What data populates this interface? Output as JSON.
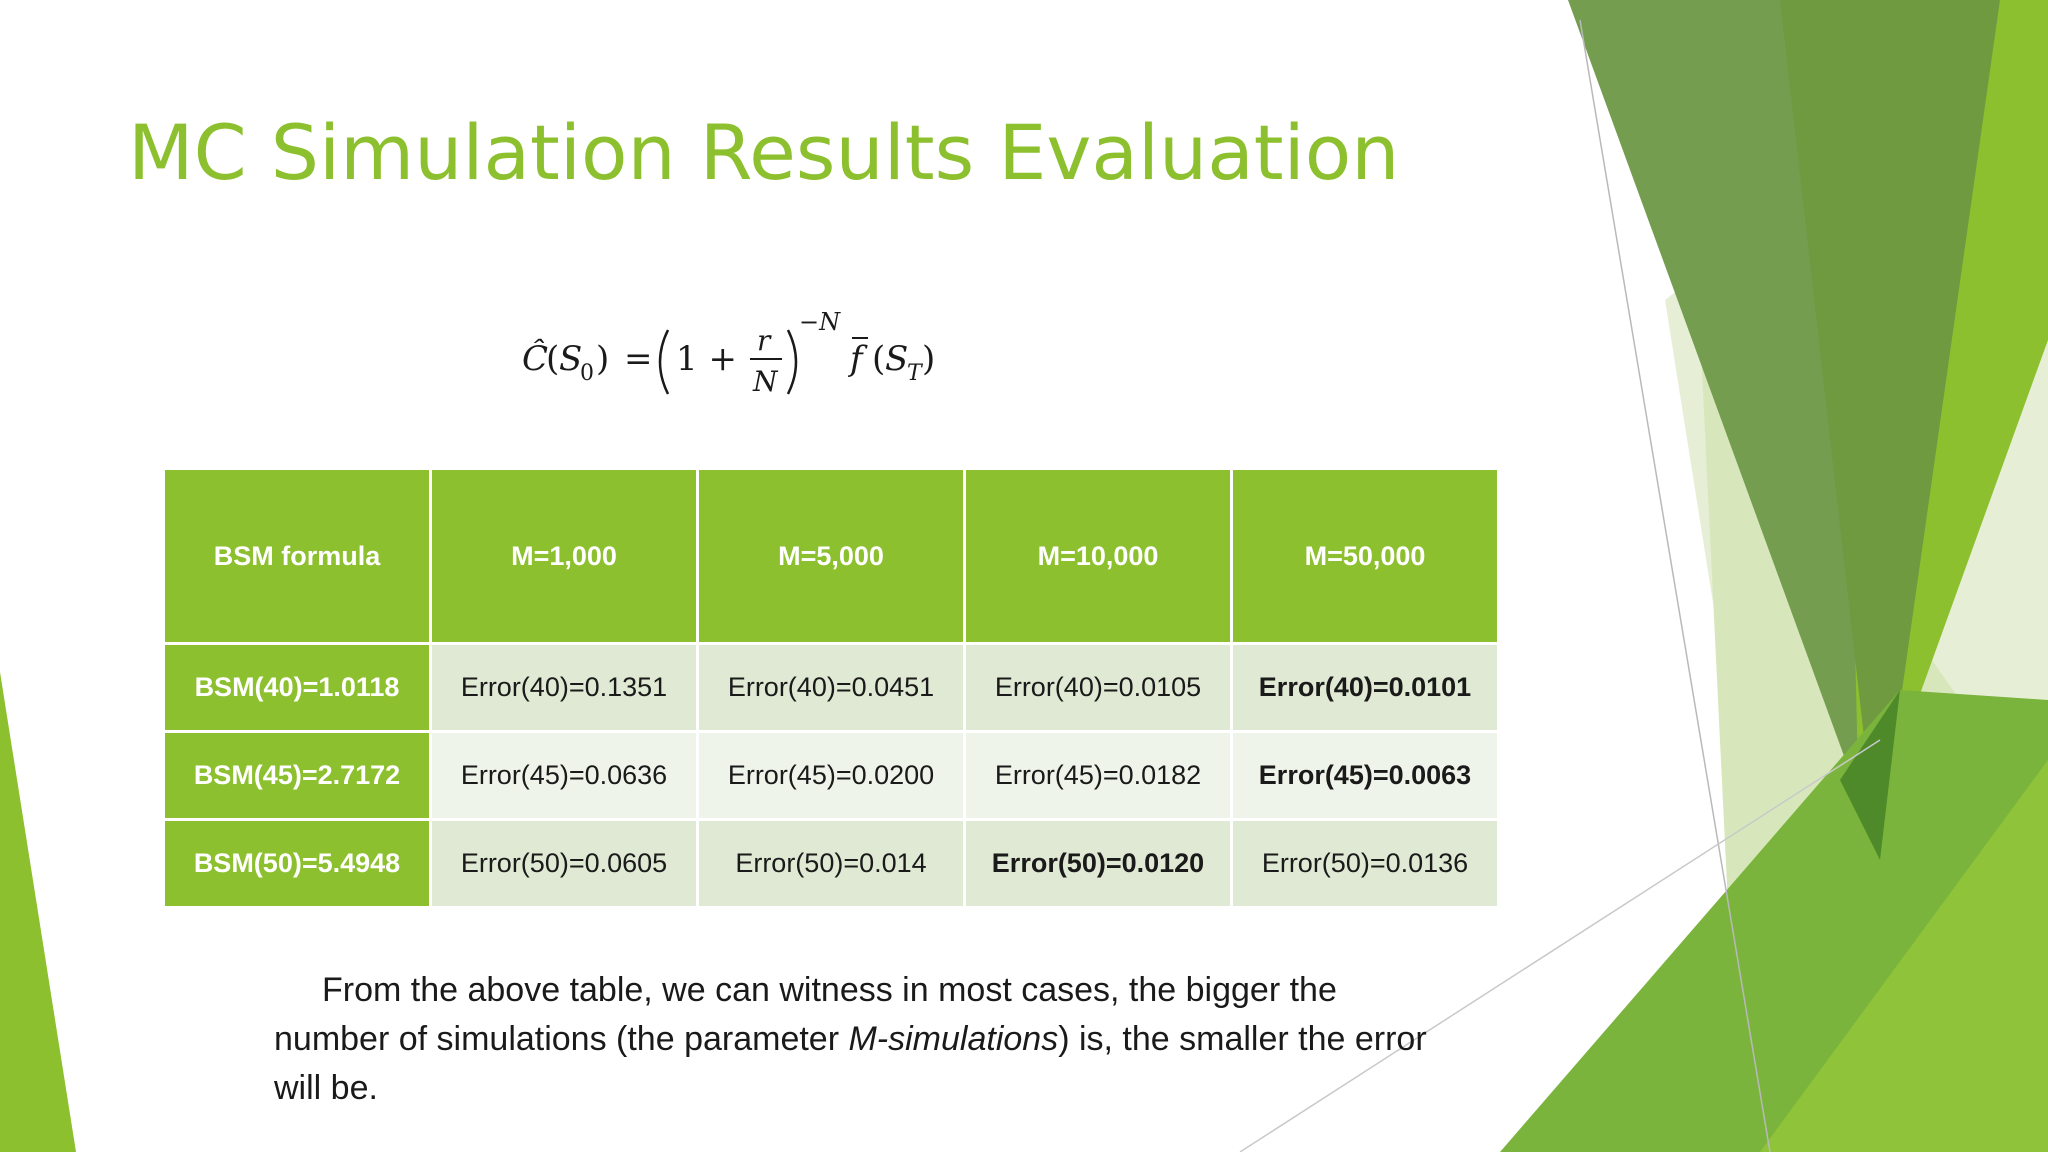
{
  "slide": {
    "title": "MC Simulation Results Evaluation",
    "accent_color": "#8dc02e"
  },
  "formula": {
    "text": "Ĉ(S₀) = (1 + r/N)^−N f̄(S_T)",
    "lhs_symbol": "Ĉ",
    "lhs_open": "(",
    "lhs_var": "S",
    "lhs_sub": "0",
    "lhs_close": ")",
    "equals": "=",
    "one_plus": "1 +",
    "numerator": "r",
    "denominator": "N",
    "exponent": "−N",
    "rhs_symbol": "f",
    "rhs_open": "(",
    "rhs_var": "S",
    "rhs_sub": "T",
    "rhs_close": ")"
  },
  "table": {
    "headers": [
      "BSM formula",
      "M=1,000",
      "M=5,000",
      "M=10,000",
      "M=50,000"
    ],
    "rows": [
      {
        "label": "BSM(40)=1.0118",
        "cells": [
          "Error(40)=0.1351",
          "Error(40)=0.0451",
          "Error(40)=0.0105",
          "Error(40)=0.0101"
        ],
        "bold_index": 3
      },
      {
        "label": "BSM(45)=2.7172",
        "cells": [
          "Error(45)=0.0636",
          "Error(45)=0.0200",
          "Error(45)=0.0182",
          "Error(45)=0.0063"
        ],
        "bold_index": 3
      },
      {
        "label": "BSM(50)=5.4948",
        "cells": [
          "Error(50)=0.0605",
          "Error(50)=0.014",
          "Error(50)=0.0120",
          "Error(50)=0.0136"
        ],
        "bold_index": 2
      }
    ]
  },
  "caption": {
    "before": "From the above table, we can witness in most cases, the bigger the number of simulations (the parameter ",
    "emphasis": "M-simulations",
    "after": ") is, the smaller the error will be."
  }
}
